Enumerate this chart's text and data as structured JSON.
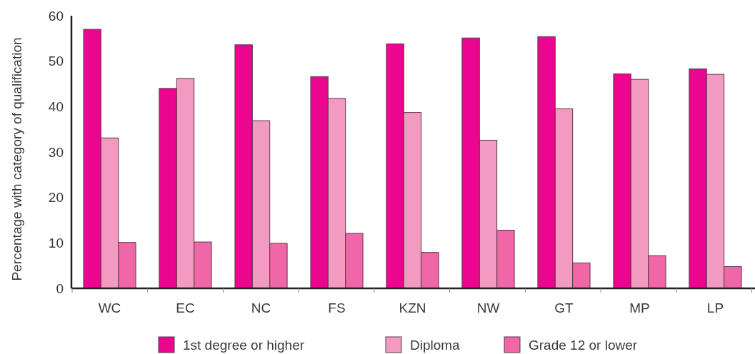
{
  "chart_data": {
    "type": "bar",
    "ylabel": "Percentage with category of qualification",
    "categories": [
      "WC",
      "EC",
      "NC",
      "FS",
      "KZN",
      "NW",
      "GT",
      "MP",
      "LP"
    ],
    "series": [
      {
        "name": "1st degree or higher",
        "color": "#ec058e",
        "values": [
          57,
          44,
          53.6,
          46.6,
          53.8,
          55.1,
          55.4,
          47.2,
          48.3
        ]
      },
      {
        "name": "Diploma",
        "color": "#f39ac1",
        "values": [
          33.1,
          46.2,
          36.9,
          41.8,
          38.7,
          32.6,
          39.5,
          46,
          47.1
        ]
      },
      {
        "name": "Grade 12 or lower",
        "color": "#f066a6",
        "values": [
          10.1,
          10.2,
          9.9,
          12.1,
          7.9,
          12.8,
          5.6,
          7.2,
          4.8
        ]
      }
    ],
    "ylim": [
      0,
      60
    ],
    "yticks": [
      0,
      10,
      20,
      30,
      40,
      50,
      60
    ],
    "grid": false,
    "legend": "bottom"
  }
}
